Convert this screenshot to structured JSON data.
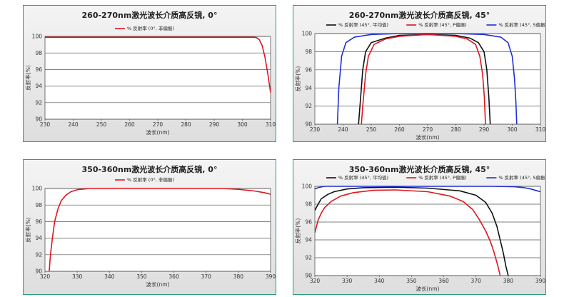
{
  "colors": {
    "red": "#e0161e",
    "black": "#111111",
    "blue": "#1f2fd8",
    "panel_border": "#2e9a7d"
  },
  "chart_data": [
    {
      "type": "line",
      "title": "260-270nm激光波长介质高反镜, 0°",
      "xlabel": "波长(nm)",
      "ylabel": "反射率(%)",
      "xlim": [
        230,
        310
      ],
      "ylim": [
        90,
        100
      ],
      "xticks": [
        230,
        240,
        250,
        260,
        270,
        280,
        290,
        300,
        310
      ],
      "yticks": [
        90,
        92,
        94,
        96,
        98,
        100
      ],
      "series": [
        {
          "name": "% 反射率 (0°, 非偏振)",
          "color": "red",
          "x": [
            230,
            250,
            270,
            290,
            300,
            304,
            305,
            306,
            307,
            308,
            309,
            310
          ],
          "y": [
            99.9,
            99.9,
            99.9,
            99.9,
            99.9,
            99.9,
            99.85,
            99.6,
            98.9,
            97.5,
            95.5,
            93.2
          ]
        }
      ]
    },
    {
      "type": "line",
      "title": "260-270nm激光波长介质高反镜, 45°",
      "xlabel": "波长(nm)",
      "ylabel": "反射率(%)",
      "xlim": [
        230,
        310
      ],
      "ylim": [
        90,
        100
      ],
      "xticks": [
        230,
        240,
        250,
        260,
        270,
        280,
        290,
        300,
        310
      ],
      "yticks": [
        90,
        92,
        94,
        96,
        98,
        100
      ],
      "series": [
        {
          "name": "% 反射率 (45°, 平均值)",
          "color": "black",
          "x": [
            245.5,
            246,
            247,
            248,
            250,
            255,
            260,
            270,
            280,
            285,
            288,
            290,
            291,
            291.7,
            292.2
          ],
          "y": [
            90,
            92,
            96,
            98,
            99,
            99.5,
            99.8,
            99.9,
            99.8,
            99.5,
            99,
            98,
            96,
            93,
            90
          ]
        },
        {
          "name": "% 反射率 (45°, P偏振)",
          "color": "red",
          "x": [
            246.5,
            247,
            248,
            249,
            251,
            255,
            260,
            270,
            280,
            284,
            287,
            288.5,
            289.5,
            290.1,
            290.5
          ],
          "y": [
            90,
            92,
            95.5,
            97.5,
            98.8,
            99.4,
            99.7,
            99.9,
            99.7,
            99.4,
            98.8,
            97.5,
            95.5,
            93,
            90
          ]
        },
        {
          "name": "% 反射率 (45°, S偏振)",
          "color": "blue",
          "x": [
            238,
            238.5,
            239.5,
            241,
            244,
            250,
            260,
            280,
            290,
            296,
            298.5,
            300,
            300.8,
            301.3,
            301.6
          ],
          "y": [
            90,
            94,
            97.5,
            99,
            99.6,
            99.9,
            100,
            100,
            99.9,
            99.6,
            99,
            97.5,
            95,
            92.5,
            90
          ]
        }
      ]
    },
    {
      "type": "line",
      "title": "350-360nm激光波长介质高反镜, 0°",
      "xlabel": "波长(nm)",
      "ylabel": "反射率(%)",
      "xlim": [
        320,
        390
      ],
      "ylim": [
        90,
        100
      ],
      "xticks": [
        320,
        330,
        340,
        350,
        360,
        370,
        380,
        390
      ],
      "yticks": [
        90,
        92,
        94,
        96,
        98,
        100
      ],
      "series": [
        {
          "name": "% 反射率 (0°, 非偏振)",
          "color": "red",
          "x": [
            321.3,
            321.7,
            322.3,
            323,
            324,
            325,
            326.5,
            328,
            330,
            334,
            340,
            360,
            375,
            380,
            385,
            388,
            390
          ],
          "y": [
            90,
            92,
            94,
            96,
            97.5,
            98.5,
            99.2,
            99.6,
            99.85,
            100,
            100,
            100,
            100,
            99.9,
            99.7,
            99.5,
            99.3
          ]
        }
      ]
    },
    {
      "type": "line",
      "title": "350-360nm激光波长介质高反镜, 45°",
      "xlabel": "波长(nm)",
      "ylabel": "反射率(%)",
      "xlim": [
        320,
        390
      ],
      "ylim": [
        90,
        100
      ],
      "xticks": [
        320,
        330,
        340,
        350,
        360,
        370,
        380,
        390
      ],
      "yticks": [
        90,
        92,
        94,
        96,
        98,
        100
      ],
      "series": [
        {
          "name": "% 反射率 (45°, 平均值)",
          "color": "black",
          "x": [
            320,
            321,
            322,
            324,
            326,
            330,
            335,
            345,
            355,
            365,
            370,
            373,
            375,
            376.5,
            377.5,
            378.5,
            379.3,
            380
          ],
          "y": [
            97.3,
            98,
            98.6,
            99.1,
            99.4,
            99.7,
            99.85,
            99.9,
            99.8,
            99.5,
            99.0,
            98.2,
            97.0,
            95.5,
            94.0,
            92.5,
            91.0,
            90
          ]
        },
        {
          "name": "% 反射率 (45°, P偏振)",
          "color": "red",
          "x": [
            320,
            321,
            322,
            323,
            325,
            328,
            332,
            338,
            345,
            355,
            362,
            366,
            369,
            371,
            373,
            374.5,
            375.7,
            376.7,
            377.5
          ],
          "y": [
            94.8,
            96.2,
            97.0,
            97.6,
            98.3,
            98.9,
            99.3,
            99.55,
            99.6,
            99.4,
            98.9,
            98.3,
            97.4,
            96.3,
            95.0,
            93.8,
            92.5,
            91.2,
            90
          ]
        },
        {
          "name": "% 反射率 (45°, S偏振)",
          "color": "blue",
          "x": [
            320,
            321,
            323,
            330,
            340,
            360,
            375,
            382,
            385,
            387,
            389,
            390
          ],
          "y": [
            99.7,
            99.85,
            100,
            100,
            100,
            100,
            100,
            99.95,
            99.85,
            99.7,
            99.5,
            99.4
          ]
        }
      ]
    }
  ]
}
